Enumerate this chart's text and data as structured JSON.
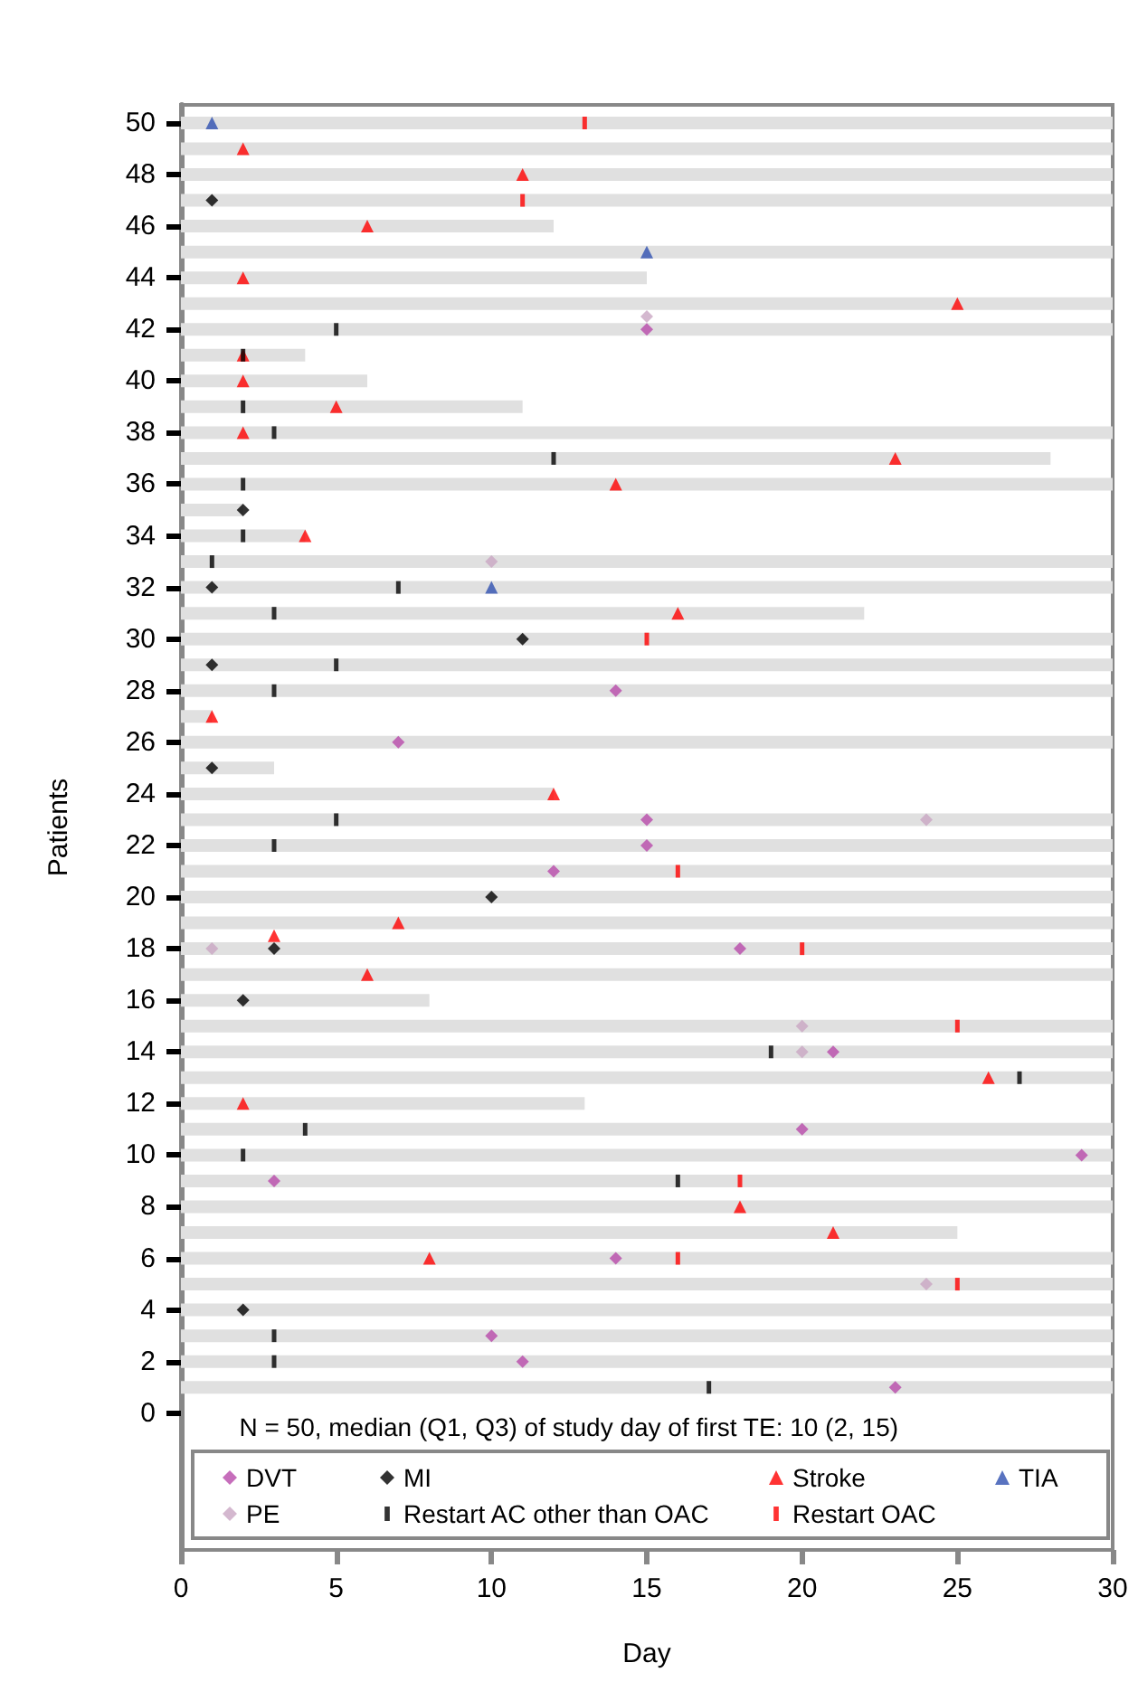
{
  "chart_data": {
    "type": "scatter",
    "xlabel": "Day",
    "ylabel": "Patients",
    "orientation": "horizontal",
    "xlim": [
      0,
      30
    ],
    "xticks": [
      0,
      5,
      10,
      15,
      20,
      25,
      30
    ],
    "ylim": [
      -5.3,
      50.7
    ],
    "yticks": [
      0,
      2,
      4,
      6,
      8,
      10,
      12,
      14,
      16,
      18,
      20,
      22,
      24,
      26,
      28,
      30,
      32,
      34,
      36,
      38,
      40,
      42,
      44,
      46,
      48,
      50
    ],
    "legend": "bottom",
    "annotations": [
      "N = 50, median (Q1, Q3) of study day of first TE: 10 (2, 15)"
    ],
    "series": [
      {
        "type": "bar",
        "color": "#e0e0e0",
        "x": [
          1,
          2,
          3,
          4,
          5,
          6,
          7,
          8,
          9,
          10,
          11,
          12,
          13,
          14,
          15,
          16,
          17,
          18,
          19,
          20,
          21,
          22,
          23,
          24,
          25,
          26,
          27,
          28,
          29,
          30,
          31,
          32,
          33,
          34,
          35,
          36,
          37,
          38,
          39,
          40,
          41,
          42,
          43,
          44,
          45,
          46,
          47,
          48,
          49,
          50
        ],
        "values": [
          30,
          30,
          30,
          30,
          30,
          30,
          25,
          30,
          30,
          30,
          30,
          13,
          30,
          30,
          30,
          8,
          30,
          30,
          30,
          30,
          30,
          30,
          30,
          12,
          3,
          30,
          1,
          30,
          30,
          30,
          22,
          30,
          30,
          4,
          2,
          30,
          28,
          30,
          11,
          6,
          4,
          30,
          30,
          15,
          30,
          12,
          30,
          30,
          30,
          30
        ]
      },
      {
        "name": "DVT",
        "color": "#b84aaa",
        "marker": "diamond",
        "values": [
          15,
          14,
          7,
          15,
          15,
          12,
          18,
          21,
          20,
          29,
          3,
          14,
          10,
          11,
          23
        ],
        "x": [
          42,
          28,
          26,
          23,
          22,
          21,
          18,
          14,
          11,
          10,
          9,
          6,
          3,
          2,
          1
        ]
      },
      {
        "name": "MI",
        "color": "#000000",
        "marker": "diamond",
        "values": [
          1,
          2,
          1,
          11,
          1,
          1,
          10,
          3,
          2,
          2
        ],
        "x": [
          47,
          35,
          32,
          30,
          29,
          25,
          20,
          18,
          16,
          4
        ]
      },
      {
        "name": "Stroke",
        "color": "#ff0000",
        "marker": "triangle",
        "values": [
          2,
          11,
          6,
          2,
          25,
          2,
          2,
          5,
          2,
          23,
          14,
          4,
          16,
          1,
          12,
          7,
          3,
          6,
          26,
          2,
          18,
          21,
          8
        ],
        "x": [
          49,
          48,
          46,
          44,
          43,
          41,
          40,
          39,
          38,
          37,
          36,
          34,
          31,
          27,
          24,
          19,
          18.5,
          17,
          13,
          12,
          8,
          7,
          6
        ]
      },
      {
        "name": "TIA",
        "color": "#3050b0",
        "marker": "triangle",
        "values": [
          1,
          15,
          10
        ],
        "x": [
          50,
          45,
          32
        ]
      },
      {
        "name": "PE",
        "color": "#c9a6c3",
        "marker": "diamond",
        "values": [
          15,
          10,
          24,
          1,
          20,
          20,
          24
        ],
        "x": [
          42.5,
          33,
          23,
          18,
          15,
          14,
          5
        ]
      },
      {
        "name": "Restart AC other than OAC",
        "color": "#000000",
        "marker": "square",
        "values": [
          5,
          2,
          2,
          3,
          12,
          2,
          2,
          1,
          7,
          3,
          5,
          3,
          5,
          3,
          19,
          27,
          4,
          2,
          16,
          3,
          3,
          17
        ],
        "x": [
          42,
          41,
          39,
          38,
          37,
          36,
          34,
          33,
          32,
          31,
          29,
          28,
          23,
          22,
          14,
          13,
          11,
          10,
          9,
          3,
          2,
          1
        ]
      },
      {
        "name": "Restart OAC",
        "color": "#ff0000",
        "marker": "square",
        "values": [
          13,
          11,
          15,
          16,
          20,
          25,
          18,
          16,
          25
        ],
        "x": [
          50,
          47,
          30,
          21,
          18,
          15,
          9,
          6,
          5
        ]
      }
    ]
  }
}
